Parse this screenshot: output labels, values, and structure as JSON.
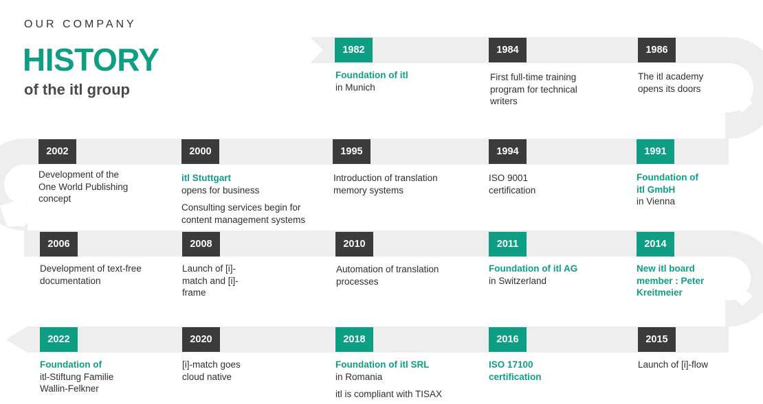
{
  "header": {
    "eyebrow": "OUR COMPANY",
    "title": "HISTORY",
    "subtitle": "of the itl group"
  },
  "colors": {
    "accent": "#0e9e84",
    "dark_box": "#3b3b3b",
    "track": "#eeeeee"
  },
  "milestones": [
    {
      "year": "1982",
      "highlight": "Foundation of itl",
      "text": "in Munich"
    },
    {
      "year": "1984",
      "text": "First full-time training program for technical writers"
    },
    {
      "year": "1986",
      "text": "The itl academy opens its doors"
    },
    {
      "year": "1991",
      "highlight": "Foundation of itl GmbH",
      "text": "in Vienna"
    },
    {
      "year": "1994",
      "text": "ISO 9001 certification"
    },
    {
      "year": "1995",
      "text": "Introduction of translation memory systems"
    },
    {
      "year": "2000",
      "highlight": "itl Stuttgart",
      "text": "opens for business",
      "text2": "Consulting services begin for content management systems"
    },
    {
      "year": "2002",
      "text": "Development of the One World Publishing concept"
    },
    {
      "year": "2006",
      "text": "Development of text-free documentation"
    },
    {
      "year": "2008",
      "text": "Launch of [i]-match and [i]-frame"
    },
    {
      "year": "2010",
      "text": "Automation of translation processes"
    },
    {
      "year": "2011",
      "highlight": "Foundation of itl AG",
      "text": "in Switzerland"
    },
    {
      "year": "2014",
      "highlight": "New itl board member : Peter Kreitmeier"
    },
    {
      "year": "2015",
      "text": "Launch of [i]-flow"
    },
    {
      "year": "2016",
      "highlight": "ISO 17100 certification"
    },
    {
      "year": "2018",
      "highlight": "Foundation of itl SRL",
      "text": "in Romania",
      "text2": "itl is compliant with TISAX"
    },
    {
      "year": "2020",
      "text": "[i]-match goes cloud native"
    },
    {
      "year": "2022",
      "highlight": "Foundation of",
      "text": "itl-Stiftung Familie Wallin-Felkner"
    }
  ]
}
